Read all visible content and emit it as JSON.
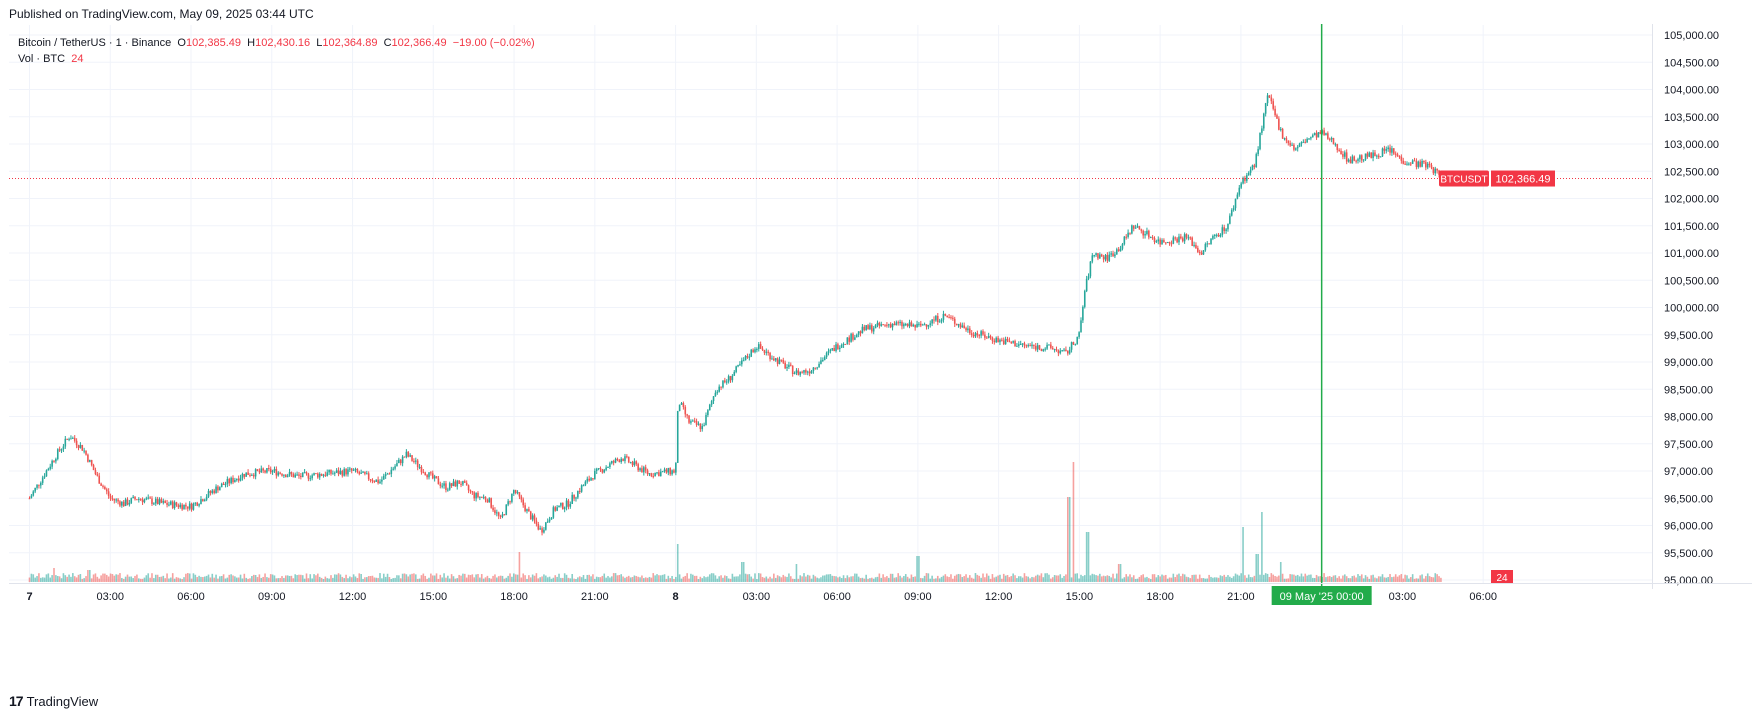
{
  "header": {
    "published": "Published on TradingView.com, May 09, 2025 03:44 UTC"
  },
  "legend": {
    "symbol": "Bitcoin / TetherUS · 1 · Binance",
    "open_label": "O",
    "open": "102,385.49",
    "high_label": "H",
    "high": "102,430.16",
    "low_label": "L",
    "low": "102,364.89",
    "close_label": "C",
    "close": "102,366.49",
    "change": "−19.00 (−0.02%)",
    "volume_label": "Vol · BTC",
    "volume": "24"
  },
  "price_tag": {
    "symbol": "BTCUSDT",
    "price": "102,366.49"
  },
  "volume_tag": "24",
  "crosshair_time_label": "09 May '25   00:00",
  "footer": {
    "logo_mark": "17",
    "brand": "TradingView"
  },
  "colors": {
    "up": "#26a69a",
    "down": "#ef5350",
    "crosshair": "#22ab4a",
    "price_tag": "#f23645"
  },
  "chart_data": {
    "type": "line",
    "title": "Bitcoin / TetherUS · 1 · Binance",
    "interval": "1 minute candlesticks",
    "y_ticks": [
      "105,000.00",
      "104,500.00",
      "104,000.00",
      "103,500.00",
      "103,000.00",
      "102,500.00",
      "102,000.00",
      "101,500.00",
      "101,000.00",
      "100,500.00",
      "100,000.00",
      "99,500.00",
      "99,000.00",
      "98,500.00",
      "98,000.00",
      "97,500.00",
      "97,000.00",
      "96,500.00",
      "96,000.00",
      "95,500.00",
      "95,000.00"
    ],
    "ylim": [
      95000,
      105000
    ],
    "x_ticks": [
      "7",
      "03:00",
      "06:00",
      "09:00",
      "12:00",
      "15:00",
      "18:00",
      "21:00",
      "8",
      "03:00",
      "06:00",
      "09:00",
      "12:00",
      "15:00",
      "18:00",
      "21:00",
      "00:00",
      "03:00",
      "06:00"
    ],
    "x_hours": [
      0,
      3,
      6,
      9,
      12,
      15,
      18,
      21,
      24,
      27,
      30,
      33,
      36,
      39,
      42,
      45,
      48,
      51,
      54
    ],
    "xlim_hours": [
      -0.3,
      57.3
    ],
    "series": [
      {
        "hours": [
          0,
          0.5,
          1,
          1.5,
          2,
          2.5,
          3,
          3.5,
          4,
          5,
          6,
          7,
          8,
          9,
          10,
          11,
          12,
          13,
          14,
          15,
          15.5,
          16,
          16.5,
          17,
          17.5,
          18,
          18.5,
          19,
          19.5,
          20,
          20.5,
          21,
          22,
          23,
          24,
          24.1,
          24.5,
          25,
          25.5,
          26,
          27,
          28,
          28.5,
          29,
          30,
          31,
          32,
          33,
          34,
          35,
          36,
          37,
          38,
          38.5,
          39,
          39.2,
          39.5,
          40,
          40.5,
          41,
          42,
          43,
          43.5,
          44,
          44.5,
          45,
          45.5,
          46,
          46.5,
          47,
          47.5,
          48,
          48.5,
          49,
          50,
          50.5,
          51,
          52,
          52.5
        ],
        "close": [
          96500,
          96900,
          97300,
          97650,
          97400,
          96900,
          96500,
          96400,
          96500,
          96400,
          96350,
          96700,
          96950,
          97000,
          96900,
          96950,
          97000,
          96800,
          97300,
          96850,
          96700,
          96800,
          96550,
          96500,
          96100,
          96650,
          96250,
          95900,
          96300,
          96400,
          96700,
          96950,
          97250,
          96950,
          97000,
          98300,
          97900,
          97800,
          98500,
          98700,
          99300,
          98950,
          98800,
          98850,
          99300,
          99600,
          99700,
          99650,
          99850,
          99550,
          99400,
          99300,
          99250,
          99150,
          99500,
          100300,
          101000,
          100900,
          101100,
          101500,
          101200,
          101300,
          101000,
          101300,
          101500,
          102300,
          102600,
          103900,
          103200,
          102900,
          103100,
          103200,
          103000,
          102700,
          102800,
          102900,
          102700,
          102600,
          102366
        ]
      }
    ],
    "volume_peaks_btc_relative": "spikes near 15:30 day 8 and 21:00 day 8",
    "last_price": 102366.49
  }
}
